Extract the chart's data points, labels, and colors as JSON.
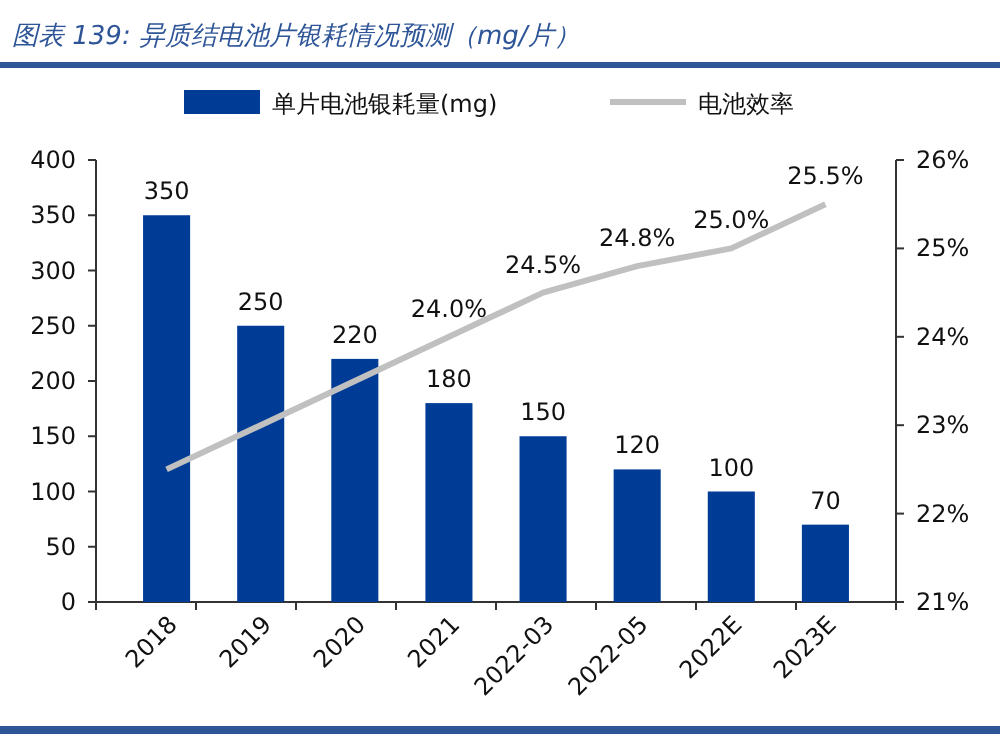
{
  "chart_data": {
    "type": "bar",
    "title": "图表 139:  异质结电池片银耗情况预测（mg/片）",
    "categories": [
      "2018",
      "2019",
      "2020",
      "2021",
      "2022-03",
      "2022-05",
      "2022E",
      "2023E"
    ],
    "series": [
      {
        "name": "单片电池银耗量(mg)",
        "color": "#003b96",
        "values": [
          350,
          250,
          220,
          180,
          150,
          120,
          100,
          70
        ],
        "value_labels": [
          "350",
          "250",
          "220",
          "180",
          "150",
          "120",
          "100",
          "70"
        ]
      },
      {
        "name": "电池效率",
        "type": "line",
        "axis": "y2",
        "color": "#c0c0c0",
        "values": [
          22.5,
          23.0,
          23.5,
          24.0,
          24.5,
          24.8,
          25.0,
          25.5
        ],
        "value_labels": [
          null,
          null,
          null,
          "24.0%",
          "24.5%",
          "24.8%",
          "25.0%",
          "25.5%"
        ]
      }
    ],
    "ylim": [
      0,
      400
    ],
    "yticks": [
      0,
      50,
      100,
      150,
      200,
      250,
      300,
      350,
      400
    ],
    "y2lim": [
      21,
      26
    ],
    "y2ticks": [
      {
        "value": 21,
        "label": "21%"
      },
      {
        "value": 22,
        "label": "22%"
      },
      {
        "value": 23,
        "label": "23%"
      },
      {
        "value": 24,
        "label": "24%"
      },
      {
        "value": 25,
        "label": "25%"
      },
      {
        "value": 26,
        "label": "26%"
      }
    ],
    "legend": "top",
    "grid": false,
    "marker": "none",
    "line_style": "solid"
  }
}
